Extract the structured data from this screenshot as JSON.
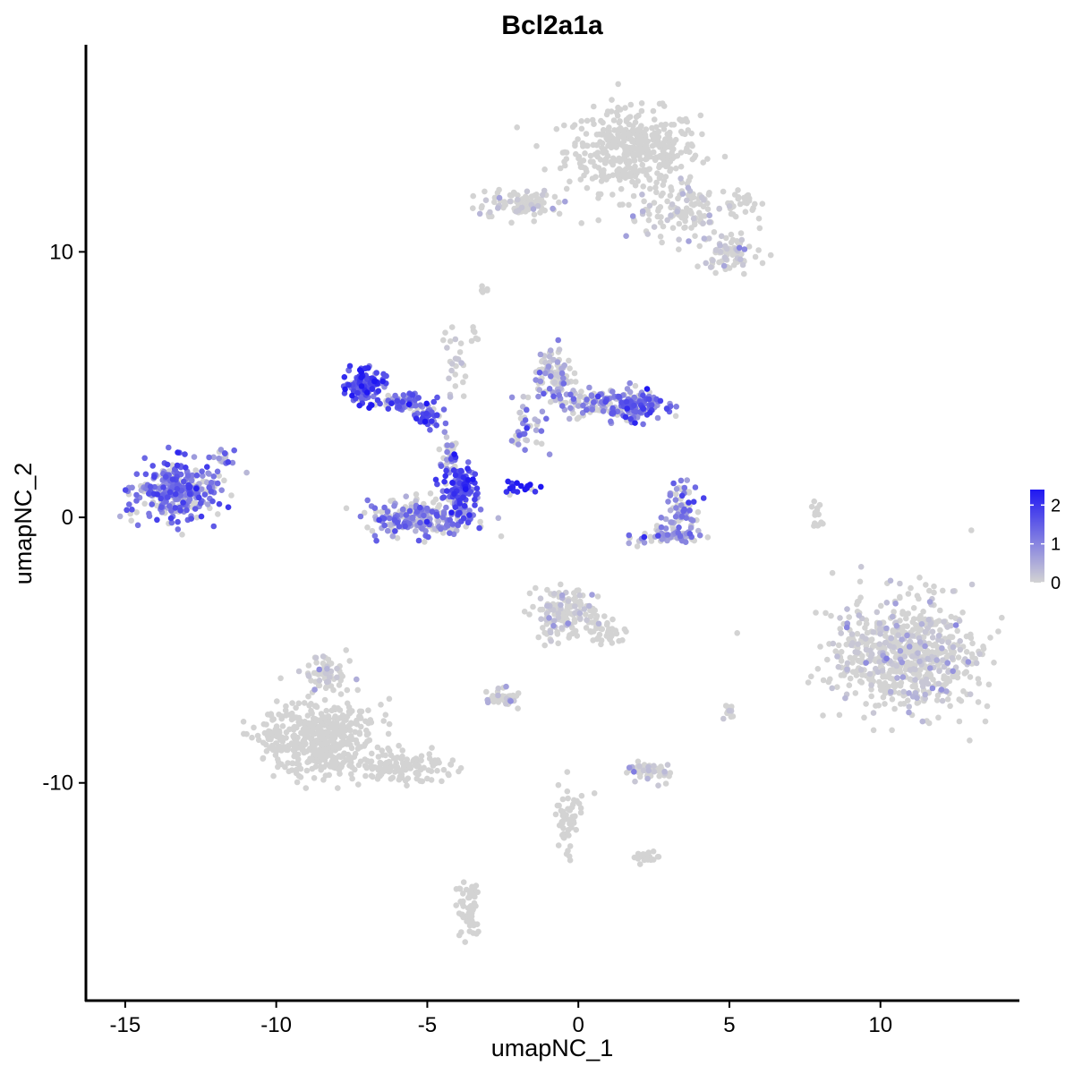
{
  "chart_data": {
    "type": "scatter",
    "title": "Bcl2a1a",
    "xlabel": "umapNC_1",
    "ylabel": "umapNC_2",
    "xlim": [
      -16.3,
      14.6
    ],
    "ylim": [
      -18.2,
      17.8
    ],
    "x_ticks": [
      -15,
      -10,
      -5,
      0,
      5,
      10
    ],
    "x_tick_labels": [
      "-15",
      "-10",
      "-5",
      "0",
      "5",
      "10"
    ],
    "y_ticks": [
      -10,
      0,
      10
    ],
    "y_tick_labels": [
      "-10",
      "0",
      "10"
    ],
    "grid": false,
    "legend_position": "right",
    "color_scale": {
      "low_color": "#d3d3d3",
      "high_color": "#1f17f2",
      "min": 0,
      "max": 2.4,
      "ticks": [
        0,
        1,
        2
      ],
      "tick_labels": [
        "0",
        "1",
        "2"
      ]
    },
    "clusters": [
      {
        "cx": 1.8,
        "cy": 13.8,
        "rx": 2.0,
        "ry": 1.4,
        "n": 420,
        "expr": 0.0
      },
      {
        "cx": 3.2,
        "cy": 11.5,
        "rx": 1.4,
        "ry": 0.9,
        "n": 110,
        "expr": 0.03
      },
      {
        "cx": 5.0,
        "cy": 10.0,
        "rx": 0.9,
        "ry": 0.8,
        "n": 80,
        "expr": 0.1
      },
      {
        "cx": 5.5,
        "cy": 11.8,
        "rx": 0.6,
        "ry": 0.4,
        "n": 25,
        "expr": 0.0
      },
      {
        "cx": -2.0,
        "cy": 11.8,
        "rx": 1.2,
        "ry": 0.45,
        "n": 90,
        "expr": 0.05
      },
      {
        "cx": -13.3,
        "cy": 1.0,
        "rx": 1.2,
        "ry": 1.0,
        "n": 320,
        "expr": 1.2
      },
      {
        "cx": -11.7,
        "cy": 2.3,
        "rx": 0.3,
        "ry": 0.3,
        "n": 15,
        "expr": 0.9
      },
      {
        "cx": -7.1,
        "cy": 5.0,
        "rx": 0.6,
        "ry": 0.6,
        "n": 110,
        "expr": 1.7
      },
      {
        "cx": -5.8,
        "cy": 4.3,
        "rx": 1.0,
        "ry": 0.35,
        "n": 60,
        "expr": 1.3
      },
      {
        "cx": -5.0,
        "cy": 3.8,
        "rx": 0.4,
        "ry": 0.35,
        "n": 40,
        "expr": 1.6
      },
      {
        "cx": -5.2,
        "cy": 0.0,
        "rx": 1.7,
        "ry": 0.6,
        "n": 240,
        "expr": 1.0
      },
      {
        "cx": -3.9,
        "cy": 1.0,
        "rx": 0.5,
        "ry": 1.0,
        "n": 110,
        "expr": 1.7
      },
      {
        "cx": -4.3,
        "cy": 2.3,
        "rx": 0.3,
        "ry": 0.7,
        "n": 30,
        "expr": 0.7
      },
      {
        "cx": -4.1,
        "cy": 5.6,
        "rx": 0.3,
        "ry": 1.3,
        "n": 25,
        "expr": 0.1
      },
      {
        "cx": -1.9,
        "cy": 1.1,
        "rx": 0.6,
        "ry": 0.3,
        "n": 18,
        "expr": 2.2
      },
      {
        "cx": -0.8,
        "cy": 5.4,
        "rx": 0.6,
        "ry": 0.9,
        "n": 90,
        "expr": 0.5
      },
      {
        "cx": 0.6,
        "cy": 4.3,
        "rx": 1.4,
        "ry": 0.45,
        "n": 120,
        "expr": 0.8
      },
      {
        "cx": 1.9,
        "cy": 4.2,
        "rx": 0.9,
        "ry": 0.6,
        "n": 130,
        "expr": 1.3
      },
      {
        "cx": -1.7,
        "cy": 3.4,
        "rx": 0.5,
        "ry": 0.9,
        "n": 35,
        "expr": 0.9
      },
      {
        "cx": 3.4,
        "cy": 0.4,
        "rx": 0.45,
        "ry": 0.8,
        "n": 70,
        "expr": 1.0
      },
      {
        "cx": 3.0,
        "cy": -0.7,
        "rx": 1.0,
        "ry": 0.25,
        "n": 60,
        "expr": 0.9
      },
      {
        "cx": 10.8,
        "cy": -5.2,
        "rx": 2.1,
        "ry": 2.0,
        "n": 680,
        "expr": 0.01
      },
      {
        "cx": -8.6,
        "cy": -8.3,
        "rx": 1.7,
        "ry": 1.3,
        "n": 480,
        "expr": 0.0
      },
      {
        "cx": -8.3,
        "cy": -5.9,
        "rx": 0.7,
        "ry": 0.6,
        "n": 60,
        "expr": 0.03
      },
      {
        "cx": -5.8,
        "cy": -9.4,
        "rx": 1.7,
        "ry": 0.45,
        "n": 130,
        "expr": 0.0
      },
      {
        "cx": -0.5,
        "cy": -3.6,
        "rx": 0.9,
        "ry": 0.9,
        "n": 150,
        "expr": 0.02
      },
      {
        "cx": 1.0,
        "cy": -4.4,
        "rx": 0.6,
        "ry": 0.6,
        "n": 40,
        "expr": 0.0
      },
      {
        "cx": -2.5,
        "cy": -6.8,
        "rx": 0.5,
        "ry": 0.3,
        "n": 40,
        "expr": 0.03
      },
      {
        "cx": 2.4,
        "cy": -9.6,
        "rx": 0.7,
        "ry": 0.3,
        "n": 50,
        "expr": 0.08
      },
      {
        "cx": -0.3,
        "cy": -11.3,
        "rx": 0.4,
        "ry": 1.3,
        "n": 55,
        "expr": 0.0
      },
      {
        "cx": 2.3,
        "cy": -12.8,
        "rx": 0.4,
        "ry": 0.2,
        "n": 25,
        "expr": 0.0
      },
      {
        "cx": -3.6,
        "cy": -14.8,
        "rx": 0.35,
        "ry": 1.0,
        "n": 60,
        "expr": 0.0
      },
      {
        "cx": 7.9,
        "cy": 0.2,
        "rx": 0.2,
        "ry": 0.6,
        "n": 15,
        "expr": 0.0
      },
      {
        "cx": 5.0,
        "cy": -7.4,
        "rx": 0.2,
        "ry": 0.3,
        "n": 12,
        "expr": 0.03
      },
      {
        "cx": -3.5,
        "cy": 7.0,
        "rx": 0.2,
        "ry": 0.3,
        "n": 6,
        "expr": 0.0
      },
      {
        "cx": -3.0,
        "cy": 8.6,
        "rx": 0.3,
        "ry": 0.15,
        "n": 6,
        "expr": 0.0
      }
    ]
  }
}
